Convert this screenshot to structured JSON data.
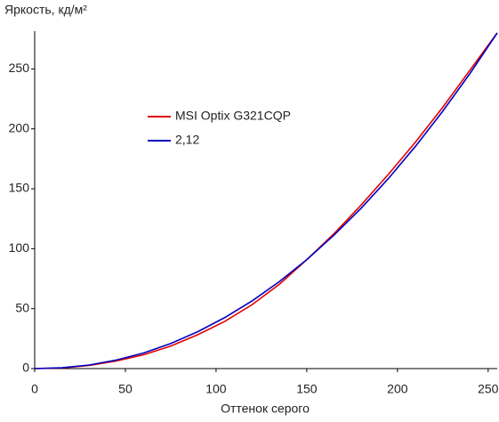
{
  "chart_data": {
    "type": "line",
    "y_label": "Яркость, кд/м²",
    "x_label": "Оттенок серого",
    "x": [
      0,
      15,
      30,
      45,
      60,
      75,
      90,
      105,
      120,
      135,
      150,
      165,
      180,
      195,
      210,
      225,
      240,
      255
    ],
    "series": [
      {
        "name": "MSI Optix G321CQP",
        "color": "#e00000",
        "values": [
          0,
          0.5,
          2.6,
          6.3,
          11.5,
          18.8,
          28.3,
          39.5,
          53.5,
          70.5,
          90.8,
          112.5,
          136.5,
          162,
          189,
          218,
          249,
          280
        ]
      },
      {
        "name": "2,12",
        "color": "#0000c0",
        "values": [
          0,
          0.7,
          3.0,
          7.1,
          13.0,
          20.9,
          30.8,
          42.7,
          56.6,
          72.7,
          90.9,
          111.3,
          133.8,
          158.5,
          185.5,
          214.7,
          246.2,
          280
        ]
      }
    ],
    "xlim": [
      0,
      255
    ],
    "xticks": [
      0,
      50,
      100,
      150,
      200,
      250
    ],
    "ylim": [
      0,
      280
    ],
    "yticks": [
      0,
      50,
      100,
      150,
      200,
      250
    ],
    "grid": false,
    "legend": "upper left"
  }
}
